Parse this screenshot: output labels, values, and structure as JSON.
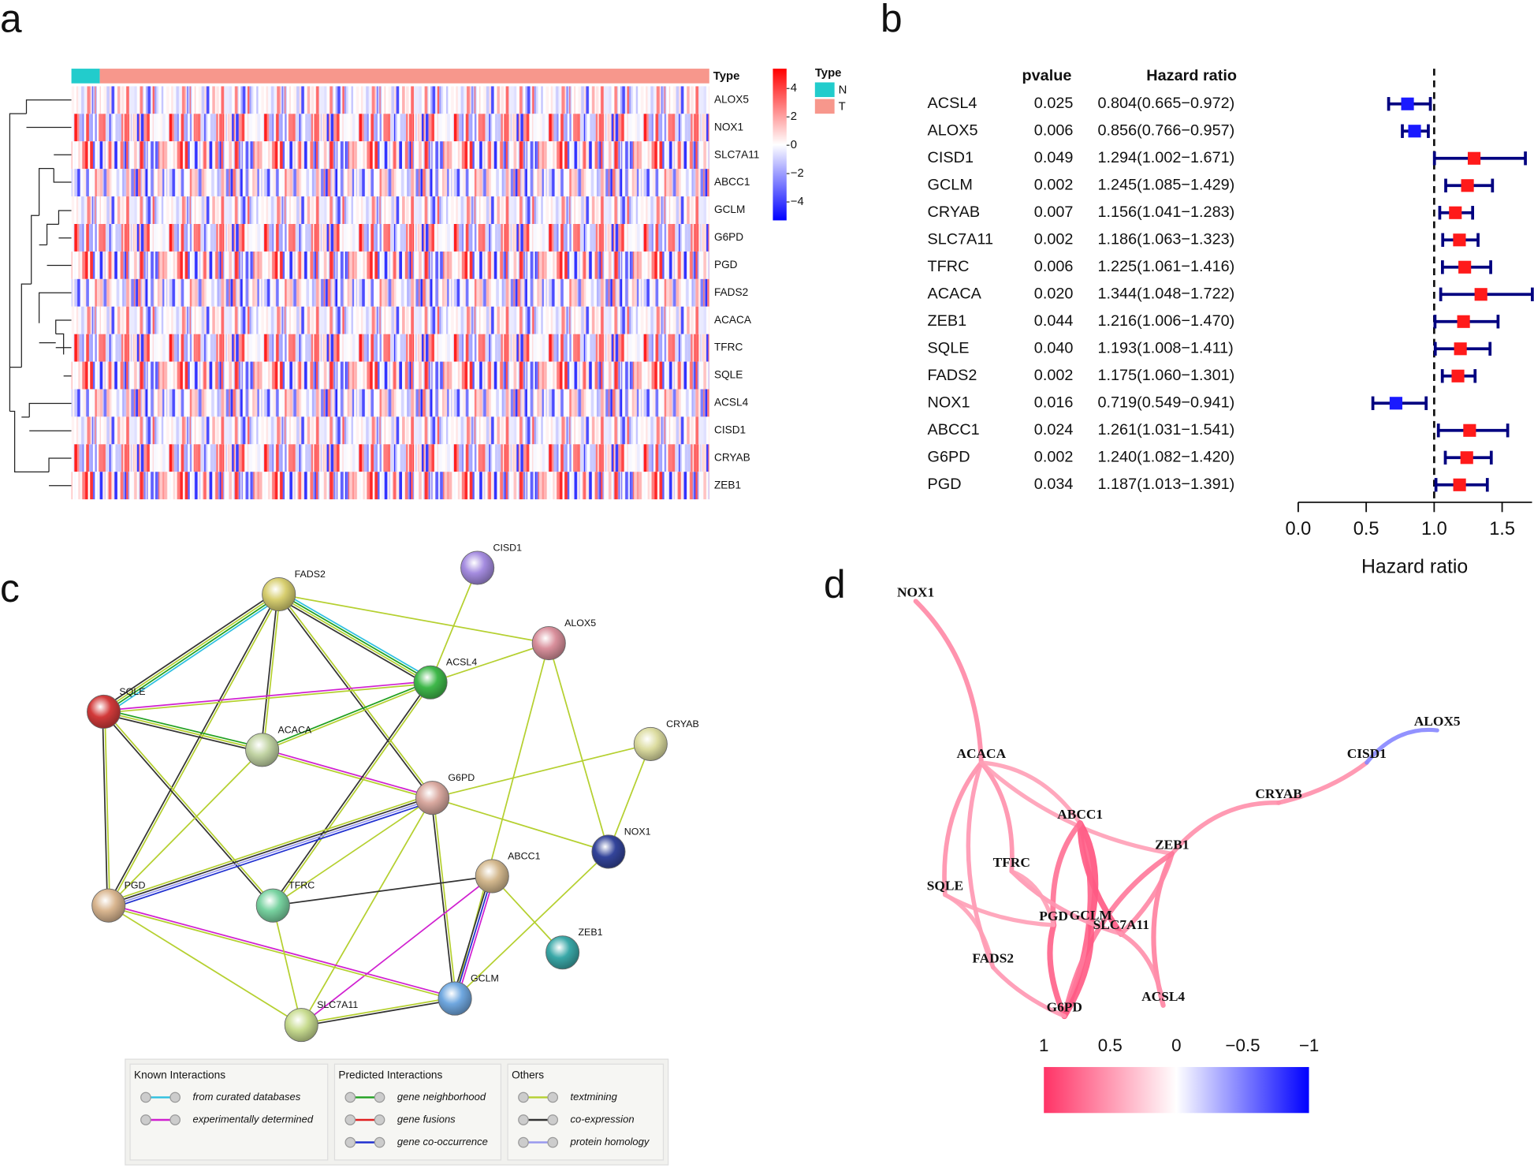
{
  "panels": [
    "a",
    "b",
    "c",
    "d"
  ],
  "chart_data": [
    {
      "type": "heatmap",
      "rows": [
        "ALOX5",
        "NOX1",
        "SLC7A11",
        "ABCC1",
        "GCLM",
        "G6PD",
        "PGD",
        "FADS2",
        "ACACA",
        "TFRC",
        "SQLE",
        "ACSL4",
        "CISD1",
        "CRYAB",
        "ZEB1"
      ],
      "annotation": "Type",
      "legend_title": "Type",
      "groups": [
        {
          "name": "N",
          "color": "#22cccc"
        },
        {
          "name": "T",
          "color": "#f7978c"
        }
      ],
      "colors": [
        "#0000ff",
        "#ffffff",
        "#ff0000"
      ],
      "clim": [
        -5.3,
        5.4
      ],
      "cticks": [
        4,
        2,
        0,
        {
          "value": -2,
          "label": "−2"
        },
        {
          "value": -4,
          "label": "−4"
        }
      ]
    },
    {
      "type": "forest",
      "columns": [
        "pvalue",
        "Hazard ratio"
      ],
      "genes": [
        "ACSL4",
        "ALOX5",
        "CISD1",
        "GCLM",
        "CRYAB",
        "SLC7A11",
        "TFRC",
        "ACACA",
        "ZEB1",
        "SQLE",
        "FADS2",
        "NOX1",
        "ABCC1",
        "G6PD",
        "PGD"
      ],
      "pvalues": [
        "0.025",
        "0.006",
        "0.049",
        "0.002",
        "0.007",
        "0.002",
        "0.006",
        "0.020",
        "0.044",
        "0.040",
        "0.002",
        "0.016",
        "0.024",
        "0.002",
        "0.034"
      ],
      "hr": [
        0.804,
        0.856,
        1.294,
        1.245,
        1.156,
        1.186,
        1.225,
        1.344,
        1.216,
        1.193,
        1.175,
        0.719,
        1.261,
        1.24,
        1.187
      ],
      "lower": [
        0.665,
        0.766,
        1.002,
        1.085,
        1.041,
        1.063,
        1.061,
        1.048,
        1.006,
        1.008,
        1.06,
        0.549,
        1.031,
        1.082,
        1.013
      ],
      "upper": [
        0.972,
        0.957,
        1.671,
        1.429,
        1.283,
        1.323,
        1.416,
        1.722,
        1.47,
        1.411,
        1.301,
        0.941,
        1.541,
        1.42,
        1.391
      ],
      "value_labels": [
        "0.804(0.665−0.972)",
        "0.856(0.766−0.957)",
        "1.294(1.002−1.671)",
        "1.245(1.085−1.429)",
        "1.156(1.041−1.283)",
        "1.186(1.063−1.323)",
        "1.225(1.061−1.416)",
        "1.344(1.048−1.722)",
        "1.216(1.006−1.470)",
        "1.193(1.008−1.411)",
        "1.175(1.060−1.301)",
        "0.719(0.549−0.941)",
        "1.261(1.031−1.541)",
        "1.240(1.082−1.420)",
        "1.187(1.013−1.391)"
      ],
      "reference": 1,
      "colors": {
        "below": "#1a1aff",
        "above": "#ff1a1a",
        "interval": "#000080"
      },
      "xlabel": "Hazard ratio",
      "xlim": [
        0,
        1.72
      ],
      "xticks": [
        {
          "value": 0,
          "label": "0.0"
        },
        {
          "value": 0.5,
          "label": "0.5"
        },
        {
          "value": 1,
          "label": "1.0"
        },
        {
          "value": 1.5,
          "label": "1.5"
        }
      ]
    },
    {
      "type": "network",
      "nodes": [
        {
          "label": "FADS2",
          "color": "#d8cf70"
        },
        {
          "label": "CISD1",
          "color": "#a58ce0"
        },
        {
          "label": "ALOX5",
          "color": "#d9909c"
        },
        {
          "label": "ACSL4",
          "color": "#3fb84a"
        },
        {
          "label": "SQLE",
          "color": "#d23a3a"
        },
        {
          "label": "ACACA",
          "color": "#c2d4a4"
        },
        {
          "label": "CRYAB",
          "color": "#dcdca0"
        },
        {
          "label": "G6PD",
          "color": "#d9a9a0"
        },
        {
          "label": "NOX1",
          "color": "#33449a"
        },
        {
          "label": "ABCC1",
          "color": "#d3b88e"
        },
        {
          "label": "PGD",
          "color": "#d9b690"
        },
        {
          "label": "TFRC",
          "color": "#78d2a0"
        },
        {
          "label": "ZEB1",
          "color": "#3aa8a8"
        },
        {
          "label": "GCLM",
          "color": "#70a8e0"
        },
        {
          "label": "SLC7A11",
          "color": "#c8dc90"
        }
      ],
      "edges": [
        {
          "source": 0,
          "target": 4,
          "types": [
            [
              0,
              0
            ],
            [
              1,
              0
            ],
            [
              2,
              0
            ],
            [
              2,
              1
            ]
          ]
        },
        {
          "source": 0,
          "target": 3,
          "types": [
            [
              0,
              0
            ],
            [
              1,
              0
            ],
            [
              2,
              0
            ],
            [
              2,
              1
            ]
          ]
        },
        {
          "source": 0,
          "target": 5,
          "types": [
            [
              2,
              0
            ],
            [
              2,
              1
            ]
          ]
        },
        {
          "source": 0,
          "target": 10,
          "types": [
            [
              2,
              0
            ],
            [
              2,
              1
            ]
          ]
        },
        {
          "source": 0,
          "target": 7,
          "types": [
            [
              2,
              0
            ],
            [
              2,
              1
            ]
          ]
        },
        {
          "source": 0,
          "target": 2,
          "types": [
            [
              2,
              0
            ]
          ]
        },
        {
          "source": 1,
          "target": 3,
          "types": [
            [
              2,
              0
            ]
          ]
        },
        {
          "source": 2,
          "target": 3,
          "types": [
            [
              2,
              0
            ]
          ]
        },
        {
          "source": 2,
          "target": 8,
          "types": [
            [
              2,
              0
            ]
          ]
        },
        {
          "source": 2,
          "target": 13,
          "types": [
            [
              2,
              0
            ]
          ]
        },
        {
          "source": 4,
          "target": 3,
          "types": [
            [
              0,
              1
            ],
            [
              2,
              0
            ]
          ]
        },
        {
          "source": 4,
          "target": 5,
          "types": [
            [
              1,
              0
            ],
            [
              2,
              0
            ],
            [
              2,
              1
            ]
          ]
        },
        {
          "source": 4,
          "target": 10,
          "types": [
            [
              2,
              0
            ],
            [
              2,
              1
            ]
          ]
        },
        {
          "source": 4,
          "target": 11,
          "types": [
            [
              2,
              0
            ],
            [
              2,
              1
            ]
          ]
        },
        {
          "source": 5,
          "target": 3,
          "types": [
            [
              1,
              0
            ],
            [
              2,
              0
            ]
          ]
        },
        {
          "source": 5,
          "target": 7,
          "types": [
            [
              0,
              1
            ],
            [
              2,
              0
            ]
          ]
        },
        {
          "source": 5,
          "target": 10,
          "types": [
            [
              2,
              0
            ]
          ]
        },
        {
          "source": 3,
          "target": 11,
          "types": [
            [
              2,
              0
            ],
            [
              2,
              1
            ]
          ]
        },
        {
          "source": 6,
          "target": 7,
          "types": [
            [
              2,
              0
            ]
          ]
        },
        {
          "source": 6,
          "target": 8,
          "types": [
            [
              2,
              0
            ]
          ]
        },
        {
          "source": 7,
          "target": 10,
          "types": [
            [
              1,
              2
            ],
            [
              2,
              2
            ],
            [
              2,
              1
            ],
            [
              2,
              0
            ]
          ]
        },
        {
          "source": 7,
          "target": 8,
          "types": [
            [
              2,
              0
            ]
          ]
        },
        {
          "source": 7,
          "target": 11,
          "types": [
            [
              2,
              0
            ]
          ]
        },
        {
          "source": 7,
          "target": 13,
          "types": [
            [
              2,
              0
            ],
            [
              2,
              1
            ]
          ]
        },
        {
          "source": 7,
          "target": 14,
          "types": [
            [
              2,
              0
            ]
          ]
        },
        {
          "source": 9,
          "target": 11,
          "types": [
            [
              2,
              1
            ]
          ]
        },
        {
          "source": 9,
          "target": 13,
          "types": [
            [
              0,
              1
            ],
            [
              1,
              2
            ],
            [
              2,
              1
            ]
          ]
        },
        {
          "source": 9,
          "target": 14,
          "types": [
            [
              0,
              1
            ]
          ]
        },
        {
          "source": 9,
          "target": 12,
          "types": [
            [
              2,
              0
            ]
          ]
        },
        {
          "source": 8,
          "target": 13,
          "types": [
            [
              2,
              0
            ]
          ]
        },
        {
          "source": 10,
          "target": 13,
          "types": [
            [
              0,
              1
            ],
            [
              2,
              0
            ]
          ]
        },
        {
          "source": 10,
          "target": 14,
          "types": [
            [
              2,
              0
            ]
          ]
        },
        {
          "source": 11,
          "target": 14,
          "types": [
            [
              2,
              0
            ]
          ]
        },
        {
          "source": 13,
          "target": 14,
          "types": [
            [
              2,
              1
            ],
            [
              2,
              0
            ]
          ]
        }
      ],
      "legend_groups": [
        {
          "title": "Known Interactions",
          "items": [
            {
              "name": "from curated databases",
              "color": "#2ec0e0"
            },
            {
              "name": "experimentally determined",
              "color": "#d020d0"
            }
          ]
        },
        {
          "title": "Predicted Interactions",
          "items": [
            {
              "name": "gene neighborhood",
              "color": "#20a020"
            },
            {
              "name": "gene fusions",
              "color": "#e02020"
            },
            {
              "name": "gene co-occurrence",
              "color": "#2030d0"
            }
          ]
        },
        {
          "title": "Others",
          "items": [
            {
              "name": "textmining",
              "color": "#b5d030"
            },
            {
              "name": "co-expression",
              "color": "#333333"
            },
            {
              "name": "protein homology",
              "color": "#9999ee"
            }
          ]
        }
      ]
    },
    {
      "type": "correlation_network",
      "nodes": [
        "NOX1",
        "ACACA",
        "ABCC1",
        "TFRC",
        "ZEB1",
        "SQLE",
        "PGD",
        "GCLM",
        "SLC7A11",
        "FADS2",
        "G6PD",
        "ACSL4",
        "CRYAB",
        "CISD1",
        "ALOX5"
      ],
      "edges": [
        {
          "source": 0,
          "target": 1,
          "value": 0.45
        },
        {
          "source": 1,
          "target": 5,
          "value": 0.4
        },
        {
          "source": 1,
          "target": 3,
          "value": 0.4
        },
        {
          "source": 1,
          "target": 9,
          "value": 0.35
        },
        {
          "source": 1,
          "target": 2,
          "value": 0.3
        },
        {
          "source": 1,
          "target": 4,
          "value": 0.3
        },
        {
          "source": 2,
          "target": 7,
          "value": 0.8
        },
        {
          "source": 2,
          "target": 8,
          "value": 0.75
        },
        {
          "source": 2,
          "target": 10,
          "value": 0.7
        },
        {
          "source": 2,
          "target": 6,
          "value": 0.6
        },
        {
          "source": 4,
          "target": 12,
          "value": 0.4
        },
        {
          "source": 12,
          "target": 13,
          "value": 0.4
        },
        {
          "source": 13,
          "target": 14,
          "value": -0.3
        },
        {
          "source": 4,
          "target": 11,
          "value": 0.5
        },
        {
          "source": 4,
          "target": 8,
          "value": 0.45
        },
        {
          "source": 4,
          "target": 10,
          "value": 0.55
        },
        {
          "source": 7,
          "target": 10,
          "value": 0.75
        },
        {
          "source": 6,
          "target": 10,
          "value": 0.7
        },
        {
          "source": 8,
          "target": 11,
          "value": 0.4
        },
        {
          "source": 3,
          "target": 8,
          "value": 0.35
        },
        {
          "source": 5,
          "target": 9,
          "value": 0.3
        },
        {
          "source": 9,
          "target": 10,
          "value": 0.35
        },
        {
          "source": 3,
          "target": 6,
          "value": 0.3
        },
        {
          "source": 5,
          "target": 6,
          "value": 0.3
        }
      ],
      "colors": [
        "#ff3366",
        "#ffffff",
        "#0000ff"
      ],
      "xlim": [
        1,
        -1
      ],
      "xticks": [
        1,
        0.5,
        0,
        {
          "value": -0.5,
          "label": "−0.5"
        },
        {
          "value": -1,
          "label": "−1"
        }
      ]
    }
  ]
}
